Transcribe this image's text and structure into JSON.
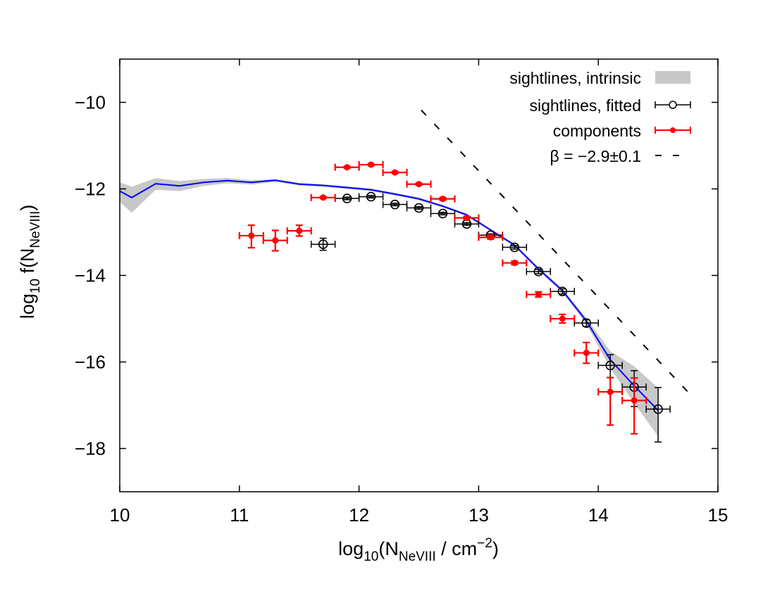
{
  "chart_data": {
    "type": "scatter",
    "title": "",
    "xlabel": "log10(N_NeVIII / cm^-2)",
    "ylabel": "log10 f(N_NeVIII)",
    "xlabel_parts": {
      "pre": "log",
      "sub1": "10",
      "mid": "(N",
      "sub2": "NeVIII",
      "mid2": " / cm",
      "sup": "−2",
      "post": ")"
    },
    "ylabel_parts": {
      "pre": "log",
      "sub1": "10",
      "mid": " f(N",
      "sub2": "NeVIII",
      "post": ")"
    },
    "xlim": [
      10,
      15
    ],
    "ylim": [
      -19,
      -9
    ],
    "xticks": [
      10,
      11,
      12,
      13,
      14,
      15
    ],
    "xtick_labels": [
      "10",
      "11",
      "12",
      "13",
      "14",
      "15"
    ],
    "yticks": [
      -10,
      -12,
      -14,
      -16,
      -18
    ],
    "ytick_labels": [
      "−10",
      "−12",
      "−14",
      "−16",
      "−18"
    ],
    "grid": false,
    "legend_position": "upper right",
    "legend": [
      {
        "label": "sightlines, intrinsic",
        "style": "band",
        "color": "#c8c8c8"
      },
      {
        "label": "sightlines, fitted",
        "style": "open-circle-errorbar",
        "color": "#000000"
      },
      {
        "label": "components",
        "style": "filled-circle-errorbar",
        "color": "#ff0000"
      },
      {
        "label": "β = −2.9±0.1",
        "style": "dashed-line",
        "color": "#000000"
      }
    ],
    "series": [
      {
        "name": "sightlines, intrinsic",
        "type": "line-with-band",
        "color": "#0000ff",
        "band_color": "#c8c8c8",
        "x": [
          10.0,
          10.1,
          10.3,
          10.5,
          10.7,
          10.9,
          11.1,
          11.3,
          11.5,
          11.7,
          11.9,
          12.1,
          12.3,
          12.5,
          12.7,
          12.9,
          13.1,
          13.3,
          13.5,
          13.7,
          13.9,
          14.1,
          14.3,
          14.5
        ],
        "y": [
          -12.05,
          -12.2,
          -11.88,
          -11.93,
          -11.85,
          -11.81,
          -11.85,
          -11.8,
          -11.89,
          -11.92,
          -11.97,
          -12.02,
          -12.12,
          -12.23,
          -12.4,
          -12.6,
          -12.95,
          -13.3,
          -13.85,
          -14.35,
          -15.05,
          -15.95,
          -16.55,
          -17.12
        ],
        "y_low": [
          -12.3,
          -12.55,
          -12.02,
          -12.05,
          -11.93,
          -11.87,
          -11.9,
          -11.84,
          -11.92,
          -11.95,
          -12.0,
          -12.05,
          -12.15,
          -12.26,
          -12.43,
          -12.63,
          -12.98,
          -13.33,
          -13.89,
          -14.4,
          -15.12,
          -16.15,
          -16.95,
          -17.72
        ],
        "y_high": [
          -11.85,
          -11.95,
          -11.75,
          -11.82,
          -11.77,
          -11.75,
          -11.8,
          -11.77,
          -11.86,
          -11.89,
          -11.94,
          -11.99,
          -12.09,
          -12.2,
          -12.37,
          -12.57,
          -12.92,
          -13.27,
          -13.81,
          -14.3,
          -14.98,
          -15.75,
          -16.1,
          -16.6
        ]
      },
      {
        "name": "sightlines, fitted",
        "type": "scatter-errorbar",
        "marker": "open-circle",
        "color": "#000000",
        "x": [
          11.7,
          11.9,
          12.1,
          12.3,
          12.5,
          12.7,
          12.9,
          13.1,
          13.3,
          13.5,
          13.7,
          13.9,
          14.1,
          14.3,
          14.5
        ],
        "y": [
          -13.28,
          -12.22,
          -12.18,
          -12.36,
          -12.44,
          -12.57,
          -12.81,
          -13.07,
          -13.35,
          -13.91,
          -14.37,
          -15.1,
          -16.08,
          -16.58,
          -17.09
        ],
        "xerr": [
          0.1,
          0.1,
          0.1,
          0.1,
          0.1,
          0.1,
          0.1,
          0.1,
          0.1,
          0.1,
          0.1,
          0.1,
          0.1,
          0.1,
          0.1
        ],
        "yerr_up": [
          0.14,
          0.03,
          0.03,
          0.03,
          0.03,
          0.03,
          0.03,
          0.03,
          0.04,
          0.05,
          0.06,
          0.08,
          0.25,
          0.38,
          0.5
        ],
        "yerr_down": [
          0.14,
          0.03,
          0.03,
          0.03,
          0.03,
          0.03,
          0.03,
          0.03,
          0.04,
          0.05,
          0.06,
          0.08,
          0.28,
          0.45,
          0.76
        ]
      },
      {
        "name": "components",
        "type": "scatter-errorbar",
        "marker": "filled-circle",
        "color": "#ff0000",
        "x": [
          11.1,
          11.3,
          11.5,
          11.7,
          11.9,
          12.1,
          12.3,
          12.5,
          12.7,
          12.9,
          13.1,
          13.3,
          13.5,
          13.7,
          13.9,
          14.1,
          14.3
        ],
        "y": [
          -13.08,
          -13.19,
          -12.97,
          -12.2,
          -11.5,
          -11.44,
          -11.62,
          -11.89,
          -12.23,
          -12.67,
          -13.12,
          -13.71,
          -14.44,
          -15.0,
          -15.79,
          -16.69,
          -16.89
        ],
        "xerr": [
          0.1,
          0.1,
          0.1,
          0.1,
          0.1,
          0.1,
          0.1,
          0.1,
          0.1,
          0.1,
          0.1,
          0.1,
          0.1,
          0.1,
          0.1,
          0.1,
          0.1
        ],
        "yerr_up": [
          0.24,
          0.23,
          0.13,
          0.02,
          0.02,
          0.02,
          0.02,
          0.02,
          0.03,
          0.03,
          0.04,
          0.04,
          0.06,
          0.1,
          0.24,
          0.33,
          0.52
        ],
        "yerr_down": [
          0.28,
          0.24,
          0.12,
          0.02,
          0.02,
          0.02,
          0.02,
          0.02,
          0.03,
          0.03,
          0.04,
          0.04,
          0.06,
          0.1,
          0.24,
          0.77,
          0.77
        ]
      },
      {
        "name": "β = −2.9±0.1",
        "type": "line",
        "style": "dashed",
        "color": "#000000",
        "x": [
          12.52,
          14.8
        ],
        "y": [
          -10.18,
          -16.84
        ]
      }
    ]
  }
}
